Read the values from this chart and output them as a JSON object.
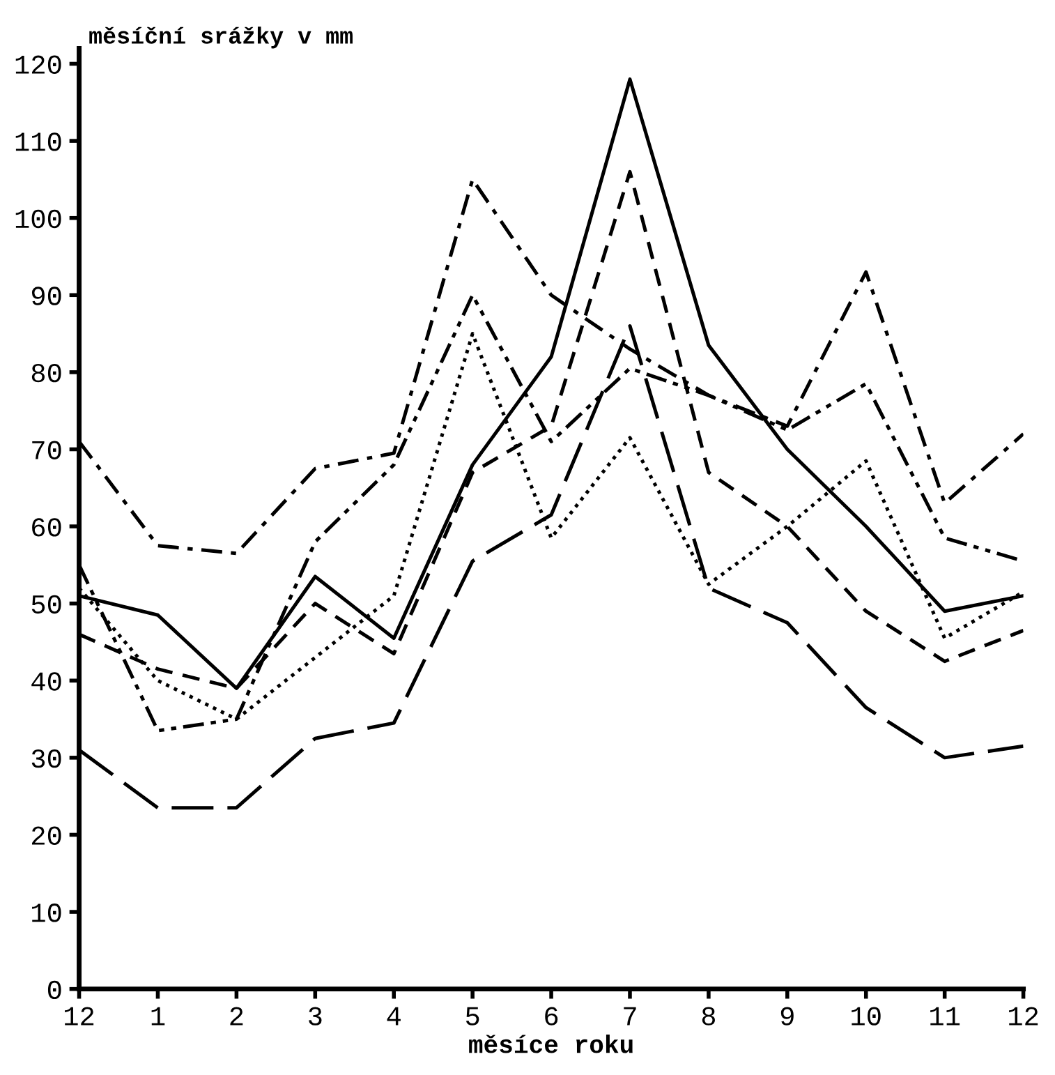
{
  "chart_data": {
    "type": "line",
    "ylabel": "měsíční srážky v mm",
    "xlabel": "měsíce roku",
    "categories": [
      "12",
      "1",
      "2",
      "3",
      "4",
      "5",
      "6",
      "7",
      "8",
      "9",
      "10",
      "11",
      "12"
    ],
    "series": [
      {
        "color": "#000000",
        "line_style": "solid",
        "values": [
          51,
          48.5,
          39,
          53.5,
          45.5,
          68,
          82,
          118,
          83.5,
          70,
          60,
          49,
          51
        ]
      },
      {
        "color": "#000000",
        "line_style": "dashed",
        "values": [
          46,
          41.5,
          39,
          50,
          43.5,
          67,
          73,
          106,
          67,
          60,
          49,
          42.5,
          46.5
        ]
      },
      {
        "color": "#000000",
        "line_style": "dashdot",
        "values": [
          71,
          57.5,
          56.5,
          67.5,
          69.5,
          105,
          90,
          83,
          77,
          73,
          93,
          63,
          72
        ]
      },
      {
        "color": "#000000",
        "line_style": "longdash",
        "values": [
          31,
          23.5,
          23.5,
          32.5,
          34.5,
          55.5,
          61.5,
          86,
          52,
          47.5,
          36.5,
          30,
          31.5
        ]
      },
      {
        "color": "#000000",
        "line_style": "dotted",
        "values": [
          52,
          40,
          35,
          43,
          51,
          85,
          58.5,
          71.5,
          52.5,
          60,
          68.5,
          45.5,
          51.5
        ]
      },
      {
        "color": "#000000",
        "line_style": "dashdotdot",
        "values": [
          55,
          33.5,
          35,
          58,
          68,
          90,
          71,
          80.5,
          77,
          72.5,
          78.5,
          58.5,
          55.5
        ]
      }
    ],
    "ylim": [
      0,
      122
    ],
    "yticks": [
      0,
      10,
      20,
      30,
      40,
      50,
      60,
      70,
      80,
      90,
      100,
      110,
      120
    ],
    "grid": false,
    "marker": "none"
  }
}
